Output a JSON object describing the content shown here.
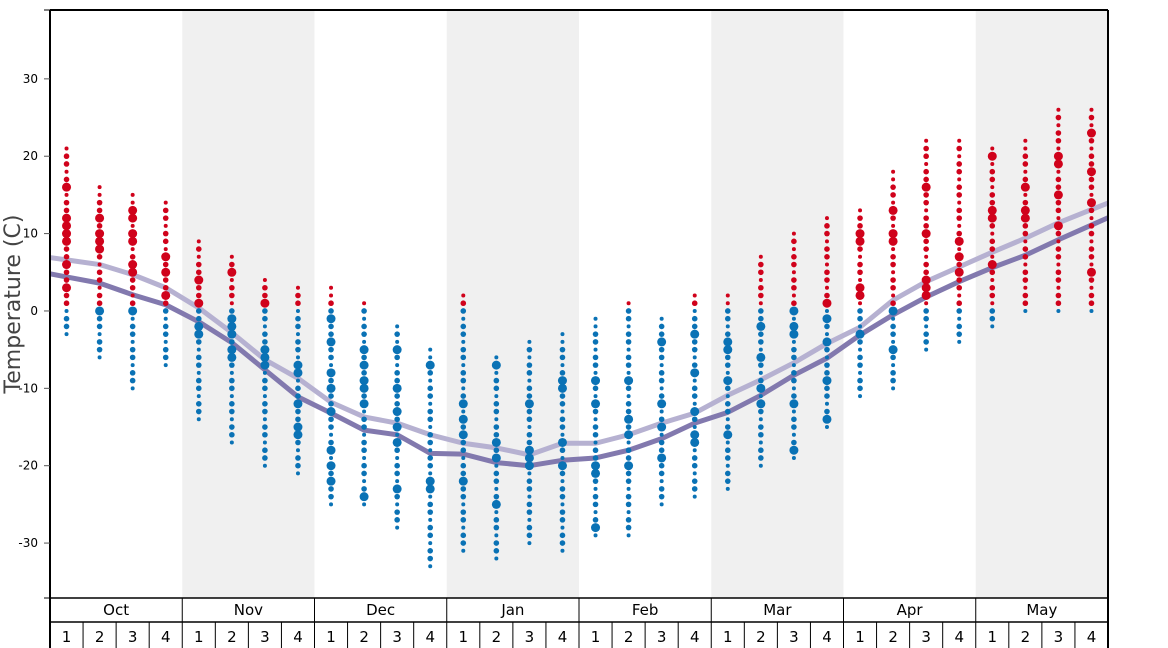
{
  "chart_data": {
    "type": "scatter",
    "title": "",
    "ylabel": "Temperature (C)",
    "xlabel": "",
    "ylim": [
      -37.1,
      38.9
    ],
    "yticks": [
      30,
      20,
      10,
      0,
      -10,
      -20,
      -30
    ],
    "grid": false,
    "months": [
      "Oct",
      "Nov",
      "Dec",
      "Jan",
      "Feb",
      "Mar",
      "Apr",
      "May"
    ],
    "weeks": [
      "1",
      "2",
      "3",
      "4"
    ],
    "shaded_months": [
      "Nov",
      "Jan",
      "Mar",
      "May"
    ],
    "colors": {
      "warm": "#d0021b",
      "cold": "#0a72b5",
      "upper_line": "#b6b1d1",
      "lower_line": "#8279ae",
      "shade": "#f0f0f0"
    },
    "dots": [
      {
        "min": -3,
        "max": 21,
        "big": [
          3,
          6,
          9,
          10,
          11,
          12,
          16
        ]
      },
      {
        "min": -6,
        "max": 16,
        "big": [
          12,
          9,
          10,
          8,
          0
        ]
      },
      {
        "min": -10,
        "max": 15,
        "big": [
          0,
          5,
          6,
          9,
          10,
          12,
          13
        ]
      },
      {
        "min": -7,
        "max": 14,
        "big": [
          7,
          5,
          2
        ]
      },
      {
        "min": -14,
        "max": 9,
        "big": [
          4,
          1,
          -2,
          -3
        ]
      },
      {
        "min": -17,
        "max": 7,
        "big": [
          -1,
          -3,
          -5,
          -6,
          -2,
          5
        ]
      },
      {
        "min": -20,
        "max": 4,
        "big": [
          1,
          -5,
          -6,
          -7
        ]
      },
      {
        "min": -21,
        "max": 3,
        "big": [
          -7,
          -8,
          -15,
          -16,
          -12
        ]
      },
      {
        "min": -25,
        "max": 3,
        "big": [
          -1,
          -4,
          -8,
          -10,
          -13,
          -18,
          -20,
          -22
        ]
      },
      {
        "min": -25,
        "max": 1,
        "big": [
          -5,
          -7,
          -9,
          -10,
          -12,
          -24
        ]
      },
      {
        "min": -28,
        "max": -2,
        "big": [
          -5,
          -10,
          -13,
          -15,
          -17,
          -23
        ]
      },
      {
        "min": -33,
        "max": -5,
        "big": [
          -7,
          -22,
          -23
        ]
      },
      {
        "min": -31,
        "max": 2,
        "big": [
          -12,
          -14,
          -16,
          -22
        ]
      },
      {
        "min": -32,
        "max": -6,
        "big": [
          -7,
          -17,
          -19,
          -25
        ]
      },
      {
        "min": -30,
        "max": -4,
        "big": [
          -12,
          -18,
          -19,
          -20
        ]
      },
      {
        "min": -31,
        "max": -3,
        "big": [
          -9,
          -10,
          -17,
          -20
        ]
      },
      {
        "min": -29,
        "max": -1,
        "big": [
          -9,
          -12,
          -20,
          -21,
          -28
        ]
      },
      {
        "min": -29,
        "max": 1,
        "big": [
          -9,
          -14,
          -16,
          -20
        ]
      },
      {
        "min": -25,
        "max": -1,
        "big": [
          -4,
          -12,
          -15,
          -19
        ]
      },
      {
        "min": -24,
        "max": 2,
        "big": [
          -3,
          -8,
          -13,
          -16,
          -17
        ]
      },
      {
        "min": -23,
        "max": 2,
        "big": [
          -4,
          -5,
          -9,
          -16
        ]
      },
      {
        "min": -20,
        "max": 7,
        "big": [
          -2,
          -6,
          -10,
          -12
        ]
      },
      {
        "min": -19,
        "max": 10,
        "big": [
          0,
          -2,
          -3,
          -12,
          -18
        ]
      },
      {
        "min": -15,
        "max": 12,
        "big": [
          1,
          -1,
          -4,
          -9,
          -14
        ]
      },
      {
        "min": -11,
        "max": 13,
        "big": [
          10,
          9,
          3,
          2,
          -3
        ]
      },
      {
        "min": -10,
        "max": 18,
        "big": [
          13,
          10,
          9,
          0,
          -5
        ]
      },
      {
        "min": -5,
        "max": 22,
        "big": [
          16,
          10,
          3,
          2,
          4
        ]
      },
      {
        "min": -4,
        "max": 22,
        "big": [
          7,
          5,
          9
        ]
      },
      {
        "min": -2,
        "max": 21,
        "big": [
          20,
          12,
          13,
          6
        ]
      },
      {
        "min": 0,
        "max": 22,
        "big": [
          12,
          13,
          16
        ]
      },
      {
        "min": 0,
        "max": 26,
        "big": [
          20,
          19,
          15,
          11
        ]
      },
      {
        "min": 0,
        "max": 26,
        "big": [
          23,
          14,
          18,
          5
        ]
      }
    ],
    "series": [
      {
        "name": "upper",
        "values": [
          6.6,
          6.0,
          4.7,
          3.0,
          0.4,
          -2.8,
          -6.3,
          -8.7,
          -11.8,
          -13.7,
          -14.5,
          -16.0,
          -17.1,
          -17.7,
          -18.6,
          -17.1,
          -17.1,
          -16.0,
          -14.5,
          -13.2,
          -10.9,
          -8.9,
          -6.7,
          -4.2,
          -2.1,
          1.4,
          3.8,
          5.7,
          7.6,
          9.4,
          11.4,
          13.1
        ]
      },
      {
        "name": "lower",
        "values": [
          4.4,
          3.6,
          2.1,
          0.8,
          -1.4,
          -4.1,
          -7.6,
          -11.1,
          -13.2,
          -15.4,
          -16.0,
          -18.4,
          -18.5,
          -19.6,
          -20.0,
          -19.3,
          -19.0,
          -18.0,
          -16.5,
          -14.5,
          -13.1,
          -10.9,
          -8.3,
          -6.1,
          -3.1,
          -0.5,
          1.8,
          3.8,
          5.6,
          7.2,
          9.2,
          11.1
        ]
      }
    ]
  }
}
